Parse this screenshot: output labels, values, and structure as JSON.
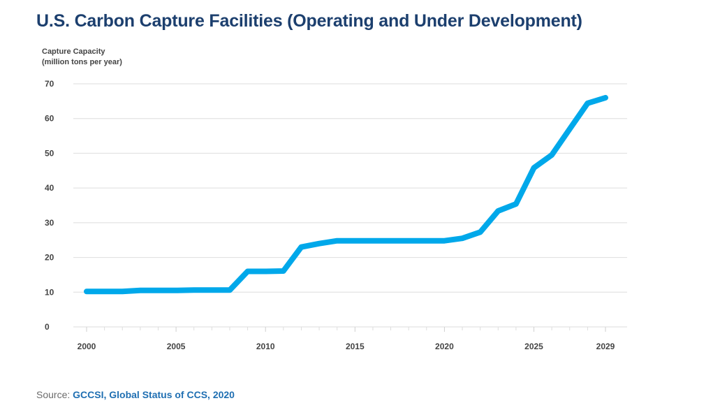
{
  "title": "U.S. Carbon Capture Facilities (Operating and Under Development)",
  "source": {
    "label": "Source:",
    "link_text": "GCCSI, Global Status of CCS, 2020"
  },
  "colors": {
    "line": "#00a8ea",
    "title": "#1c3f6e",
    "grid": "#dedede",
    "axis_text": "#444444",
    "source_link": "#1f6fb2"
  },
  "chart_data": {
    "type": "line",
    "ylabel_line1": "Capture Capacity",
    "ylabel_line2": "(million tons per year)",
    "xlabel": "",
    "ylim": [
      0,
      70
    ],
    "xlim": [
      2000,
      2029
    ],
    "grid": true,
    "yticks": [
      0,
      10,
      20,
      30,
      40,
      50,
      60,
      70
    ],
    "xticks": [
      "2000",
      "2005",
      "2010",
      "2015",
      "2020",
      "2025",
      "2029"
    ],
    "series": [
      {
        "x": [
          2000,
          2001,
          2002,
          2003,
          2004,
          2005,
          2006,
          2007,
          2008,
          2009,
          2010,
          2011,
          2012,
          2013,
          2014,
          2015,
          2016,
          2017,
          2018,
          2019,
          2020,
          2021,
          2022,
          2023,
          2024,
          2025,
          2026,
          2027,
          2028,
          2029
        ],
        "y": [
          10.2,
          10.2,
          10.2,
          10.5,
          10.5,
          10.5,
          10.6,
          10.6,
          10.6,
          16,
          16,
          16.1,
          23,
          24,
          24.8,
          24.8,
          24.8,
          24.8,
          24.8,
          24.8,
          24.8,
          25.5,
          27.3,
          33.4,
          35.4,
          45.8,
          49.5,
          57,
          64.4,
          66
        ]
      }
    ]
  }
}
